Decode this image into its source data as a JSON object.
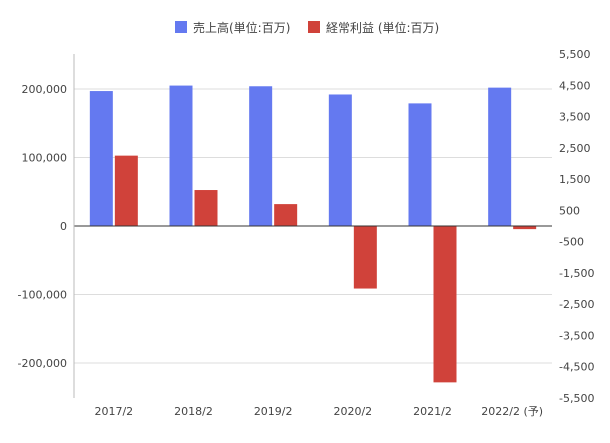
{
  "chart_data": {
    "type": "bar",
    "categories": [
      "2017/2",
      "2018/2",
      "2019/2",
      "2020/2",
      "2021/2",
      "2022/2 (予)"
    ],
    "series": [
      {
        "name": "売上高(単位:百万)",
        "axis": "left",
        "color": "#6479f0",
        "values": [
          197000,
          205000,
          204000,
          192000,
          179000,
          202000
        ]
      },
      {
        "name": "経常利益 (単位:百万)",
        "axis": "right",
        "color": "#d0423a",
        "values": [
          2250,
          1150,
          700,
          -2000,
          -5000,
          -100
        ]
      }
    ],
    "y_left": {
      "range": [
        -250000,
        250000
      ],
      "ticks": [
        200000,
        100000,
        0,
        -100000,
        -200000
      ],
      "tick_labels": [
        "200,000",
        "100,000",
        "0",
        "-100,000",
        "-200,000"
      ]
    },
    "y_right": {
      "range": [
        -5500,
        5500
      ],
      "ticks": [
        5500,
        4500,
        3500,
        2500,
        1500,
        500,
        -500,
        -1500,
        -2500,
        -3500,
        -4500,
        -5500
      ],
      "tick_labels": [
        "5,500",
        "4,500",
        "3,500",
        "2,500",
        "1,500",
        "500",
        "-500",
        "-1,500",
        "-2,500",
        "-3,500",
        "-4,500",
        "-5,500"
      ]
    },
    "legend_position": "top-center",
    "grid": true,
    "title": "",
    "xlabel": "",
    "ylabel": ""
  }
}
